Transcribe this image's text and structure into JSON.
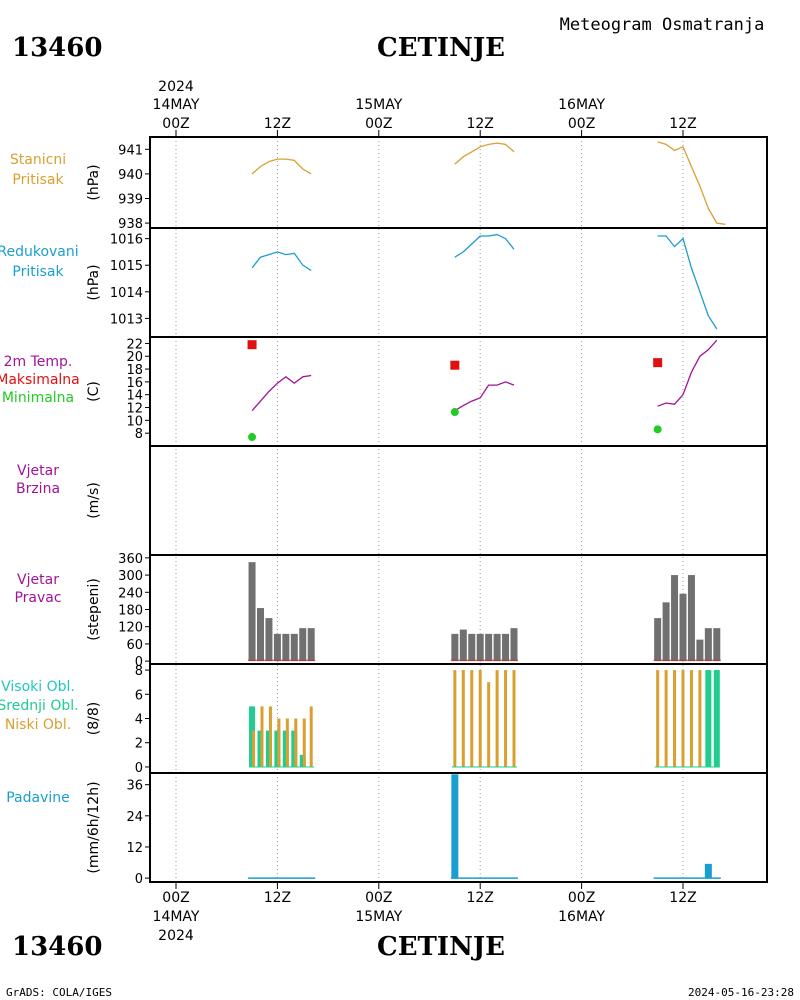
{
  "header": {
    "station_id": "13460",
    "station_name": "CETINJE",
    "title": "Meteogram Osmatranja"
  },
  "footer": {
    "credit": "GrADS: COLA/IGES",
    "timestamp": "2024-05-16-23:28"
  },
  "time_axis": {
    "year": "2024",
    "days": [
      {
        "date": "14MAY",
        "hour0": "00Z",
        "hour12": "12Z"
      },
      {
        "date": "15MAY",
        "hour0": "00Z",
        "hour12": "12Z"
      },
      {
        "date": "16MAY",
        "hour0": "00Z",
        "hour12": "12Z"
      }
    ]
  },
  "colors": {
    "pressure": "#d9a030",
    "reduced": "#1a9ed0",
    "temp": "#a0149a",
    "tmax": "#e01010",
    "tmin": "#20cc20",
    "wind_dir": "#707070",
    "wind_dir_line": "#c03030",
    "cloud_high": "#20cc90",
    "cloud_mid": "#20cc90",
    "cloud_low": "#d9a030",
    "precip": "#1a9ed0",
    "label_pressure": "#d9a030",
    "label_reduced": "#1a9ed0",
    "label_temp": "#a0149a",
    "label_max": "#e01010",
    "label_min": "#20cc20",
    "label_wind": "#a0149a",
    "label_cloud_high": "#20c8c0",
    "label_cloud_mid": "#20cc90",
    "label_cloud_low": "#d9a030",
    "label_precip": "#1a9ed0"
  },
  "chart_data": [
    {
      "type": "line",
      "key": "station_pressure",
      "label_lines": [
        "Stanicni",
        "Pritisak"
      ],
      "unit": "(hPa)",
      "ylim": [
        937.8,
        941.5
      ],
      "yticks": [
        938,
        939,
        940,
        941
      ],
      "series": [
        {
          "values": [
            [
              9,
              940.0
            ],
            [
              10,
              940.3
            ],
            [
              11,
              940.5
            ],
            [
              12,
              940.6
            ],
            [
              13,
              940.6
            ],
            [
              14,
              940.55
            ],
            [
              15,
              940.2
            ],
            [
              16,
              940.0
            ]
          ]
        },
        {
          "values": [
            [
              33,
              940.4
            ],
            [
              34,
              940.7
            ],
            [
              35,
              940.9
            ],
            [
              36,
              941.1
            ],
            [
              37,
              941.2
            ],
            [
              38,
              941.25
            ],
            [
              39,
              941.2
            ],
            [
              40,
              940.9
            ]
          ]
        },
        {
          "values": [
            [
              57,
              941.3
            ],
            [
              58,
              941.2
            ],
            [
              59,
              940.95
            ],
            [
              60,
              941.1
            ],
            [
              61,
              940.3
            ],
            [
              62,
              939.5
            ],
            [
              63,
              938.6
            ],
            [
              64,
              938.0
            ],
            [
              65,
              937.95
            ]
          ]
        }
      ]
    },
    {
      "type": "line",
      "key": "reduced_pressure",
      "label_lines": [
        "Redukovani",
        "Pritisak"
      ],
      "unit": "(hPa)",
      "ylim": [
        1012.3,
        1016.4
      ],
      "yticks": [
        1013,
        1014,
        1015,
        1016
      ],
      "series": [
        {
          "values": [
            [
              9,
              1014.9
            ],
            [
              10,
              1015.3
            ],
            [
              11,
              1015.4
            ],
            [
              12,
              1015.5
            ],
            [
              13,
              1015.4
            ],
            [
              14,
              1015.45
            ],
            [
              15,
              1015.0
            ],
            [
              16,
              1014.8
            ]
          ]
        },
        {
          "values": [
            [
              33,
              1015.3
            ],
            [
              34,
              1015.5
            ],
            [
              35,
              1015.8
            ],
            [
              36,
              1016.1
            ],
            [
              37,
              1016.1
            ],
            [
              38,
              1016.15
            ],
            [
              39,
              1016.0
            ],
            [
              40,
              1015.6
            ]
          ]
        },
        {
          "values": [
            [
              57,
              1016.1
            ],
            [
              58,
              1016.1
            ],
            [
              59,
              1015.7
            ],
            [
              60,
              1016.0
            ],
            [
              61,
              1014.9
            ],
            [
              62,
              1014.0
            ],
            [
              63,
              1013.1
            ],
            [
              64,
              1012.6
            ]
          ]
        }
      ]
    },
    {
      "type": "line",
      "key": "temperature",
      "label_lines": [
        "2m Temp.",
        "Maksimalna",
        "Minimalna"
      ],
      "unit": "(C)",
      "ylim": [
        6,
        23
      ],
      "yticks": [
        8,
        10,
        12,
        14,
        16,
        18,
        20,
        22
      ],
      "series": [
        {
          "values": [
            [
              9,
              11.5
            ],
            [
              10,
              13.0
            ],
            [
              11,
              14.5
            ],
            [
              12,
              15.8
            ],
            [
              13,
              16.8
            ],
            [
              14,
              15.8
            ],
            [
              15,
              16.8
            ],
            [
              16,
              17.0
            ]
          ]
        },
        {
          "values": [
            [
              33,
              11.5
            ],
            [
              34,
              12.3
            ],
            [
              35,
              13.0
            ],
            [
              36,
              13.5
            ],
            [
              37,
              15.5
            ],
            [
              38,
              15.5
            ],
            [
              39,
              16.0
            ],
            [
              40,
              15.5
            ]
          ]
        },
        {
          "values": [
            [
              57,
              12.2
            ],
            [
              58,
              12.7
            ],
            [
              59,
              12.5
            ],
            [
              60,
              14.0
            ],
            [
              61,
              17.5
            ],
            [
              62,
              20.0
            ],
            [
              63,
              21.0
            ],
            [
              64,
              22.5
            ]
          ]
        }
      ],
      "max_points": [
        [
          9,
          21.8
        ],
        [
          33,
          18.6
        ],
        [
          57,
          19.0
        ]
      ],
      "min_points": [
        [
          9,
          7.4
        ],
        [
          33,
          11.3
        ],
        [
          57,
          8.6
        ]
      ]
    },
    {
      "type": "line",
      "key": "wind_speed",
      "label_lines": [
        "Vjetar",
        "Brzina"
      ],
      "unit": "(m/s)",
      "ylim": [
        0,
        1
      ],
      "yticks": [],
      "series": []
    },
    {
      "type": "bar",
      "key": "wind_direction",
      "label_lines": [
        "Vjetar",
        "Pravac"
      ],
      "unit": "(stepeni)",
      "ylim": [
        -10,
        370
      ],
      "yticks": [
        0,
        60,
        120,
        180,
        240,
        300,
        360
      ],
      "values": [
        [
          9,
          345
        ],
        [
          10,
          185
        ],
        [
          11,
          150
        ],
        [
          12,
          95
        ],
        [
          13,
          95
        ],
        [
          14,
          95
        ],
        [
          15,
          115
        ],
        [
          16,
          115
        ],
        [
          33,
          95
        ],
        [
          34,
          110
        ],
        [
          35,
          95
        ],
        [
          36,
          95
        ],
        [
          37,
          95
        ],
        [
          38,
          95
        ],
        [
          39,
          95
        ],
        [
          40,
          115
        ],
        [
          57,
          150
        ],
        [
          58,
          205
        ],
        [
          59,
          300
        ],
        [
          60,
          235
        ],
        [
          61,
          300
        ],
        [
          62,
          75
        ],
        [
          63,
          115
        ],
        [
          64,
          115
        ]
      ]
    },
    {
      "type": "bar",
      "key": "clouds",
      "label_lines": [
        "Visoki Obl.",
        "Srednji Obl.",
        "Niski Obl."
      ],
      "unit": "(8/8)",
      "ylim": [
        -0.5,
        8.5
      ],
      "yticks": [
        0,
        2,
        4,
        6,
        8
      ],
      "series": [
        {
          "name": "Niski",
          "values": [
            [
              9,
              3
            ],
            [
              10,
              5
            ],
            [
              11,
              5
            ],
            [
              12,
              4
            ],
            [
              13,
              4
            ],
            [
              14,
              4
            ],
            [
              15,
              4
            ],
            [
              16,
              5
            ],
            [
              33,
              8
            ],
            [
              34,
              8
            ],
            [
              35,
              8
            ],
            [
              36,
              8
            ],
            [
              37,
              7
            ],
            [
              38,
              8
            ],
            [
              39,
              8
            ],
            [
              40,
              8
            ],
            [
              57,
              8
            ],
            [
              58,
              8
            ],
            [
              59,
              8
            ],
            [
              60,
              8
            ],
            [
              61,
              8
            ],
            [
              62,
              8
            ],
            [
              63,
              0
            ],
            [
              64,
              0
            ]
          ]
        },
        {
          "name": "Srednji",
          "values": [
            [
              9,
              5
            ],
            [
              10,
              3
            ],
            [
              11,
              3
            ],
            [
              12,
              3
            ],
            [
              13,
              3
            ],
            [
              14,
              3
            ],
            [
              15,
              1
            ],
            [
              16,
              0
            ],
            [
              33,
              0
            ],
            [
              34,
              0
            ],
            [
              35,
              0
            ],
            [
              36,
              0
            ],
            [
              37,
              0
            ],
            [
              38,
              0
            ],
            [
              39,
              0
            ],
            [
              40,
              0
            ],
            [
              57,
              0
            ],
            [
              58,
              0
            ],
            [
              59,
              0
            ],
            [
              60,
              0
            ],
            [
              61,
              0
            ],
            [
              62,
              0
            ],
            [
              63,
              8
            ],
            [
              64,
              8
            ]
          ]
        }
      ]
    },
    {
      "type": "bar",
      "key": "precipitation",
      "label_lines": [
        "Padavine"
      ],
      "unit": "(mm/6h/12h)",
      "ylim": [
        -1.5,
        40.5
      ],
      "yticks": [
        0,
        12,
        24,
        36
      ],
      "values": [
        [
          33,
          40
        ],
        [
          63,
          5.5
        ]
      ],
      "trace_ranges": [
        [
          9,
          16
        ],
        [
          33,
          40
        ],
        [
          57,
          64
        ]
      ]
    }
  ]
}
